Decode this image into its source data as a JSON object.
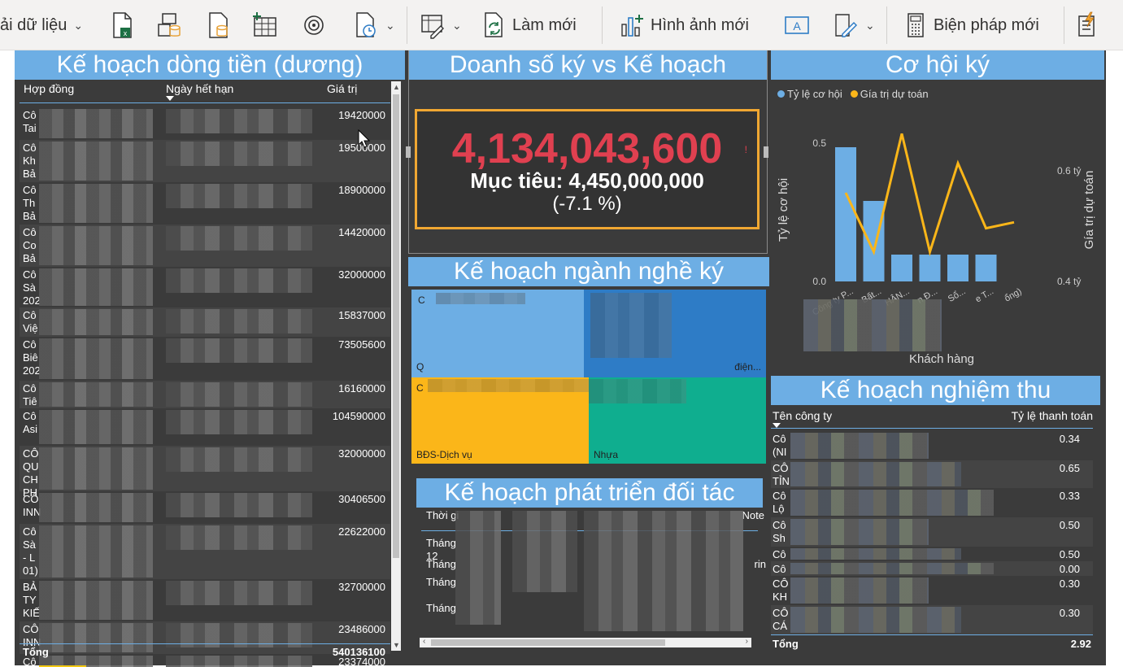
{
  "ribbon": {
    "get_data": "ải dữ liệu",
    "refresh": "Làm mới",
    "new_visual": "Hình ảnh mới",
    "new_measure": "Biện pháp mới"
  },
  "cashflow": {
    "title": "Kế hoạch dòng tiền (dương)",
    "col_contract": "Hợp đồng",
    "col_expiry": "Ngày hết hạn",
    "col_value": "Giá trị",
    "rows": [
      {
        "label": "Cô\nTai",
        "value": "19420000"
      },
      {
        "label": "Cô\nKh\nBả",
        "value": "19500000"
      },
      {
        "label": "Cô\nTh\nBả",
        "value": "18900000"
      },
      {
        "label": "Cô\nCo\nBả",
        "value": "14420000"
      },
      {
        "label": "Cô\nSà\n202",
        "value": "32000000"
      },
      {
        "label": "Cô\nViệ",
        "value": "15837000"
      },
      {
        "label": "Cô\nBiê\n202",
        "value": "73505600"
      },
      {
        "label": "Cô\nTiê",
        "value": "16160000"
      },
      {
        "label": "Cô\nAsi",
        "value": "104590000"
      },
      {
        "label": "CÔ\nQU\nCH\nPH",
        "value": "32000000"
      },
      {
        "label": "CÔ\nINN",
        "value": "30406500"
      },
      {
        "label": "Cô\nSà\n- L\n01)",
        "value": "22622000"
      },
      {
        "label": "BẢ\nTY\nKIẾ",
        "value": "32700000"
      },
      {
        "label": "CÔ\nINN",
        "value": "23486000"
      },
      {
        "label": "Cô",
        "value": "23374000"
      }
    ],
    "total_label": "Tổng",
    "total_value": "540136100"
  },
  "kpi": {
    "title": "Doanh số ký vs Kế hoạch",
    "value": "4,134,043,600",
    "marker": "!",
    "goal": "Mục tiêu: 4,450,000,000",
    "diff": "(-7.1 %)"
  },
  "industry": {
    "title": "Kế hoạch ngành nghề ký",
    "cells": [
      {
        "top": "C",
        "bottom": "Q",
        "color": "#6daee4"
      },
      {
        "top": "",
        "bottom": "điện...",
        "color": "#2e7cc6"
      },
      {
        "top": "C",
        "bottom": "BĐS-Dịch vụ",
        "color": "#fbb619"
      },
      {
        "top": "",
        "bottom": "Nhựa",
        "color": "#0fae8f"
      }
    ]
  },
  "partner": {
    "title": "Kế hoạch phát triển đối tác",
    "col1": "Thời gi",
    "col4": "Note",
    "rows": [
      {
        "c1": "Tháng\n12",
        "c4": ""
      },
      {
        "c1": "Tháng",
        "c4": "rin"
      },
      {
        "c1": "Tháng",
        "c4": ""
      },
      {
        "c1": "Tháng",
        "c4": ""
      }
    ]
  },
  "opportunity": {
    "title": "Cơ hội ký",
    "legend": [
      "Tỷ lệ cơ hội",
      "Gía trị dự toán"
    ],
    "ylabel_left": "Tỷ lệ cơ hội",
    "ylabel_right": "Gía trị dự toán",
    "xlabel": "Khách hàng",
    "left_ticks": [
      "0.5",
      "0.0"
    ],
    "right_ticks": [
      "0.6 tỷ",
      "0.4 tỷ"
    ],
    "x_ticks": [
      "Công ty P...",
      "Bất...",
      "HÂN...",
      "n Đ...",
      "Sổ...",
      "e T...",
      "ổng)"
    ]
  },
  "chart_data": {
    "type": "bar",
    "categories": [
      "Công ty P...",
      "Bất...",
      "HÂN...",
      "n Đ...",
      "Sổ...",
      "e T...",
      "ổng)"
    ],
    "series": [
      {
        "name": "Tỷ lệ cơ hội",
        "values": [
          0.5,
          0.3,
          0.1,
          0.1,
          0.1,
          0.1,
          null
        ],
        "axis": "left"
      },
      {
        "name": "Gía trị dự toán",
        "values": [
          0.55,
          0.45,
          0.65,
          0.45,
          0.6,
          0.49,
          0.5
        ],
        "axis": "right"
      }
    ],
    "ylim_left": [
      0,
      0.6
    ],
    "ylim_right": [
      0.4,
      0.7
    ],
    "xlabel": "Khách hàng",
    "ylabel": "Tỷ lệ cơ hội",
    "ylabel_right": "Gía trị dự toán",
    "legend": "top-left",
    "colors": [
      "#6daee4",
      "#fbb619"
    ]
  },
  "acceptance": {
    "title": "Kế hoạch nghiệm thu",
    "col_company": "Tên công ty",
    "col_rate": "Tỷ lệ thanh toán",
    "rows": [
      {
        "label": "Cô\n(NI",
        "value": "0.34"
      },
      {
        "label": "CÔ\nTỈN",
        "value": "0.65"
      },
      {
        "label": "Cô\nLộ",
        "value": "0.33"
      },
      {
        "label": "Cô\nSh",
        "value": "0.50"
      },
      {
        "label": "Cô",
        "value": "0.50"
      },
      {
        "label": "Cô",
        "value": "0.00"
      },
      {
        "label": "CÔ\nKH",
        "value": "0.30"
      },
      {
        "label": "CÔ\nCÁ",
        "value": "0.30"
      }
    ],
    "total_label": "Tổng",
    "total_value": "2.92"
  }
}
